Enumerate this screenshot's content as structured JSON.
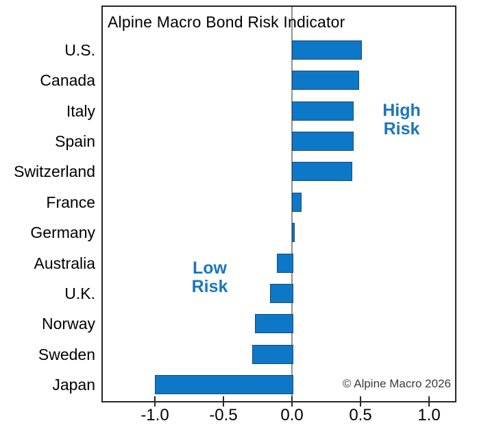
{
  "chart_data": {
    "type": "bar",
    "orientation": "horizontal",
    "title": "Alpine Macro Bond Risk Indicator",
    "categories": [
      "U.S.",
      "Canada",
      "Italy",
      "Spain",
      "Switzerland",
      "France",
      "Germany",
      "Australia",
      "U.K.",
      "Norway",
      "Sweden",
      "Japan"
    ],
    "values": [
      0.5,
      0.48,
      0.44,
      0.44,
      0.43,
      0.06,
      0.01,
      -0.11,
      -0.16,
      -0.27,
      -0.29,
      -1.0
    ],
    "xlabel": "",
    "ylabel": "",
    "xlim": [
      -1.39,
      1.2
    ],
    "xticks": [
      -1.0,
      -0.5,
      0.0,
      0.5,
      1.0
    ],
    "xtick_labels": [
      "-1.0",
      "-0.5",
      "0.0",
      "0.5",
      "1.0"
    ],
    "grid": false,
    "legend": "none",
    "bar_color": "#0e78c8",
    "bar_border_color": "#1a4971",
    "zero_line_color": "#8f8f8f",
    "annotation_color": "#1b75bc",
    "annotations": {
      "high": {
        "line1": "High",
        "line2": "Risk"
      },
      "low": {
        "line1": "Low",
        "line2": "Risk"
      }
    },
    "source_note": "© Alpine Macro 2026"
  }
}
